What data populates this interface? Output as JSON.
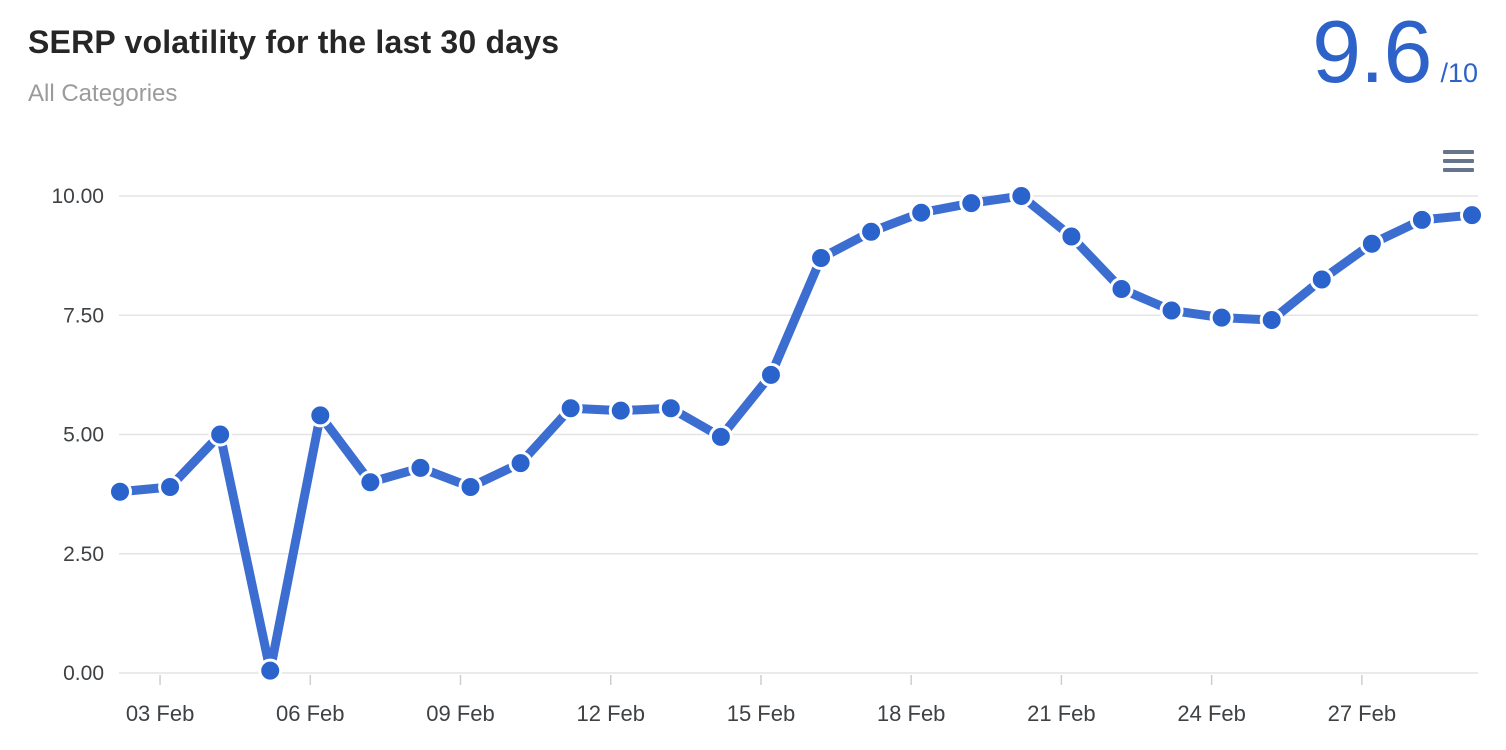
{
  "header": {
    "title": "SERP volatility for the last 30 days",
    "subtitle": "All Categories",
    "score_value": "9.6",
    "score_denominator": "/10"
  },
  "menu": {
    "icon": "hamburger-menu-icon"
  },
  "colors": {
    "accent_blue": "#2d62c9",
    "line": "#3c6dd0",
    "point_fill": "#2b63cc",
    "point_ring": "#ffffff",
    "grid": "#e4e4e4",
    "tick": "#cfcfcf",
    "axis_text": "#3f4245",
    "title_text": "#262626",
    "subtitle_text": "#9b9b9b",
    "menu_icon": "#67758a"
  },
  "chart_data": {
    "type": "line",
    "title": "SERP volatility for the last 30 days",
    "subtitle": "All Categories",
    "legend": "none",
    "grid": true,
    "ylim": [
      0,
      10
    ],
    "yticks": [
      0,
      2.5,
      5,
      7.5,
      10
    ],
    "ytick_labels": [
      "0.00",
      "2.50",
      "5.00",
      "7.50",
      "10.00"
    ],
    "x": [
      "02 Feb",
      "03 Feb",
      "04 Feb",
      "05 Feb",
      "06 Feb",
      "07 Feb",
      "08 Feb",
      "09 Feb",
      "10 Feb",
      "11 Feb",
      "12 Feb",
      "13 Feb",
      "14 Feb",
      "15 Feb",
      "16 Feb",
      "17 Feb",
      "18 Feb",
      "19 Feb",
      "20 Feb",
      "21 Feb",
      "22 Feb",
      "23 Feb",
      "24 Feb",
      "25 Feb",
      "26 Feb",
      "27 Feb",
      "28 Feb",
      "01 Mar"
    ],
    "values": [
      3.8,
      3.9,
      5.0,
      0.05,
      5.4,
      4.0,
      4.3,
      3.9,
      4.4,
      5.55,
      5.5,
      5.55,
      4.95,
      6.25,
      8.7,
      9.25,
      9.65,
      9.85,
      10,
      9.15,
      8.05,
      7.6,
      7.45,
      7.4,
      8.25,
      9.0,
      9.5,
      9.6
    ],
    "xtick_indices": [
      1,
      4,
      7,
      10,
      13,
      16,
      19,
      22,
      25
    ],
    "xtick_labels": [
      "03 Feb",
      "06 Feb",
      "09 Feb",
      "12 Feb",
      "15 Feb",
      "18 Feb",
      "21 Feb",
      "24 Feb",
      "27 Feb"
    ]
  }
}
